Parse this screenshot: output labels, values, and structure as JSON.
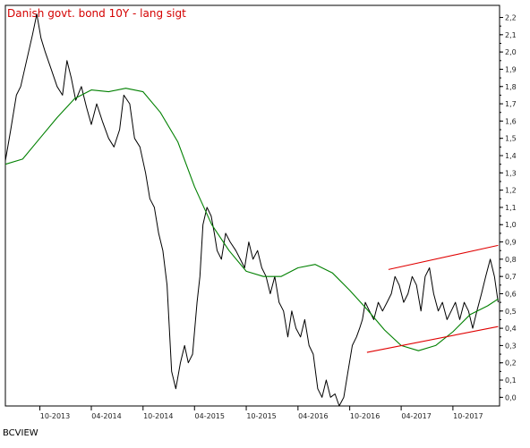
{
  "chart_data": {
    "type": "line",
    "title": "Danish govt. bond 10Y - lang sigt",
    "footer": "BCVIEW",
    "x_ticks": [
      "10-2013",
      "04-2014",
      "10-2014",
      "04-2015",
      "10-2015",
      "04-2016",
      "10-2016",
      "04-2017",
      "10-2017"
    ],
    "y_ticks": [
      "2,2",
      "2,1",
      "2,0",
      "1,9",
      "1,8",
      "1,7",
      "1,6",
      "1,5",
      "1,4",
      "1,3",
      "1,2",
      "1,1",
      "1,0",
      "0,9",
      "0,8",
      "0,7",
      "0,6",
      "0,5",
      "0,4",
      "0,3",
      "0,2",
      "0,1",
      "0,0"
    ],
    "ylim": [
      -0.05,
      2.27
    ],
    "xlim": [
      "2013-06-01",
      "2018-03-15"
    ],
    "grid": false,
    "colors": {
      "price": "#000000",
      "moving_average": "#008000",
      "channel": "#e00000",
      "title": "#d40000"
    },
    "series": [
      {
        "role": "price",
        "x": [
          "2013-06-01",
          "2013-06-20",
          "2013-07-10",
          "2013-07-25",
          "2013-08-15",
          "2013-09-05",
          "2013-09-20",
          "2013-10-05",
          "2013-10-20",
          "2013-11-10",
          "2013-12-01",
          "2013-12-20",
          "2014-01-05",
          "2014-01-20",
          "2014-02-05",
          "2014-02-25",
          "2014-03-15",
          "2014-04-01",
          "2014-04-20",
          "2014-05-10",
          "2014-06-01",
          "2014-06-20",
          "2014-07-10",
          "2014-07-25",
          "2014-08-15",
          "2014-09-01",
          "2014-09-20",
          "2014-10-10",
          "2014-10-25",
          "2014-11-10",
          "2014-11-25",
          "2014-12-10",
          "2014-12-25",
          "2015-01-10",
          "2015-01-25",
          "2015-02-10",
          "2015-02-25",
          "2015-03-10",
          "2015-03-25",
          "2015-04-10",
          "2015-04-20",
          "2015-05-01",
          "2015-05-15",
          "2015-05-30",
          "2015-06-10",
          "2015-06-20",
          "2015-07-05",
          "2015-07-20",
          "2015-08-05",
          "2015-08-25",
          "2015-09-10",
          "2015-09-25",
          "2015-10-10",
          "2015-10-25",
          "2015-11-10",
          "2015-11-25",
          "2015-12-10",
          "2015-12-25",
          "2016-01-10",
          "2016-01-25",
          "2016-02-10",
          "2016-02-25",
          "2016-03-10",
          "2016-03-25",
          "2016-04-10",
          "2016-04-25",
          "2016-05-10",
          "2016-05-25",
          "2016-06-10",
          "2016-06-25",
          "2016-07-10",
          "2016-07-25",
          "2016-08-10",
          "2016-08-25",
          "2016-09-10",
          "2016-09-25",
          "2016-10-10",
          "2016-10-25",
          "2016-11-05",
          "2016-11-15",
          "2016-11-25",
          "2016-12-10",
          "2016-12-25",
          "2017-01-10",
          "2017-01-25",
          "2017-02-10",
          "2017-02-25",
          "2017-03-10",
          "2017-03-25",
          "2017-04-10",
          "2017-04-25",
          "2017-05-10",
          "2017-05-25",
          "2017-06-10",
          "2017-06-25",
          "2017-07-10",
          "2017-07-25",
          "2017-08-10",
          "2017-08-25",
          "2017-09-10",
          "2017-09-25",
          "2017-10-10",
          "2017-10-25",
          "2017-11-10",
          "2017-11-25",
          "2017-12-10",
          "2017-12-25",
          "2018-01-10",
          "2018-01-25",
          "2018-02-10",
          "2018-02-25",
          "2018-03-10"
        ],
        "y": [
          1.37,
          1.55,
          1.75,
          1.8,
          1.95,
          2.1,
          2.22,
          2.08,
          2.0,
          1.9,
          1.8,
          1.75,
          1.95,
          1.85,
          1.72,
          1.8,
          1.68,
          1.58,
          1.7,
          1.6,
          1.5,
          1.45,
          1.55,
          1.75,
          1.7,
          1.5,
          1.45,
          1.3,
          1.15,
          1.1,
          0.95,
          0.85,
          0.65,
          0.15,
          0.05,
          0.2,
          0.3,
          0.2,
          0.25,
          0.55,
          0.7,
          1.0,
          1.1,
          1.05,
          0.95,
          0.85,
          0.8,
          0.95,
          0.9,
          0.85,
          0.8,
          0.75,
          0.9,
          0.8,
          0.85,
          0.75,
          0.7,
          0.6,
          0.7,
          0.55,
          0.5,
          0.35,
          0.5,
          0.4,
          0.35,
          0.45,
          0.3,
          0.25,
          0.05,
          0.0,
          0.1,
          0.0,
          0.02,
          -0.05,
          0.0,
          0.15,
          0.3,
          0.35,
          0.4,
          0.45,
          0.55,
          0.5,
          0.45,
          0.55,
          0.5,
          0.55,
          0.6,
          0.7,
          0.65,
          0.55,
          0.6,
          0.7,
          0.65,
          0.5,
          0.7,
          0.75,
          0.6,
          0.5,
          0.55,
          0.45,
          0.5,
          0.55,
          0.45,
          0.55,
          0.5,
          0.4,
          0.5,
          0.6,
          0.7,
          0.8,
          0.7,
          0.55
        ]
      },
      {
        "role": "moving_average",
        "x": [
          "2013-06-01",
          "2013-08-01",
          "2013-10-01",
          "2013-12-01",
          "2014-02-01",
          "2014-04-01",
          "2014-06-01",
          "2014-08-01",
          "2014-10-01",
          "2014-12-01",
          "2015-02-01",
          "2015-04-01",
          "2015-06-01",
          "2015-08-01",
          "2015-10-01",
          "2015-12-01",
          "2016-02-01",
          "2016-04-01",
          "2016-06-01",
          "2016-08-01",
          "2016-10-01",
          "2016-12-01",
          "2017-02-01",
          "2017-04-01",
          "2017-06-01",
          "2017-08-01",
          "2017-10-01",
          "2017-12-01",
          "2018-02-01",
          "2018-03-10"
        ],
        "y": [
          1.35,
          1.38,
          1.5,
          1.62,
          1.73,
          1.78,
          1.77,
          1.79,
          1.77,
          1.65,
          1.48,
          1.22,
          1.0,
          0.85,
          0.73,
          0.7,
          0.7,
          0.75,
          0.77,
          0.72,
          0.62,
          0.51,
          0.39,
          0.3,
          0.27,
          0.3,
          0.38,
          0.48,
          0.53,
          0.57
        ]
      },
      {
        "role": "channel_upper",
        "x": [
          "2017-02-15",
          "2018-03-10"
        ],
        "y": [
          0.74,
          0.88
        ]
      },
      {
        "role": "channel_lower",
        "x": [
          "2016-12-01",
          "2018-03-10"
        ],
        "y": [
          0.26,
          0.41
        ]
      }
    ]
  }
}
